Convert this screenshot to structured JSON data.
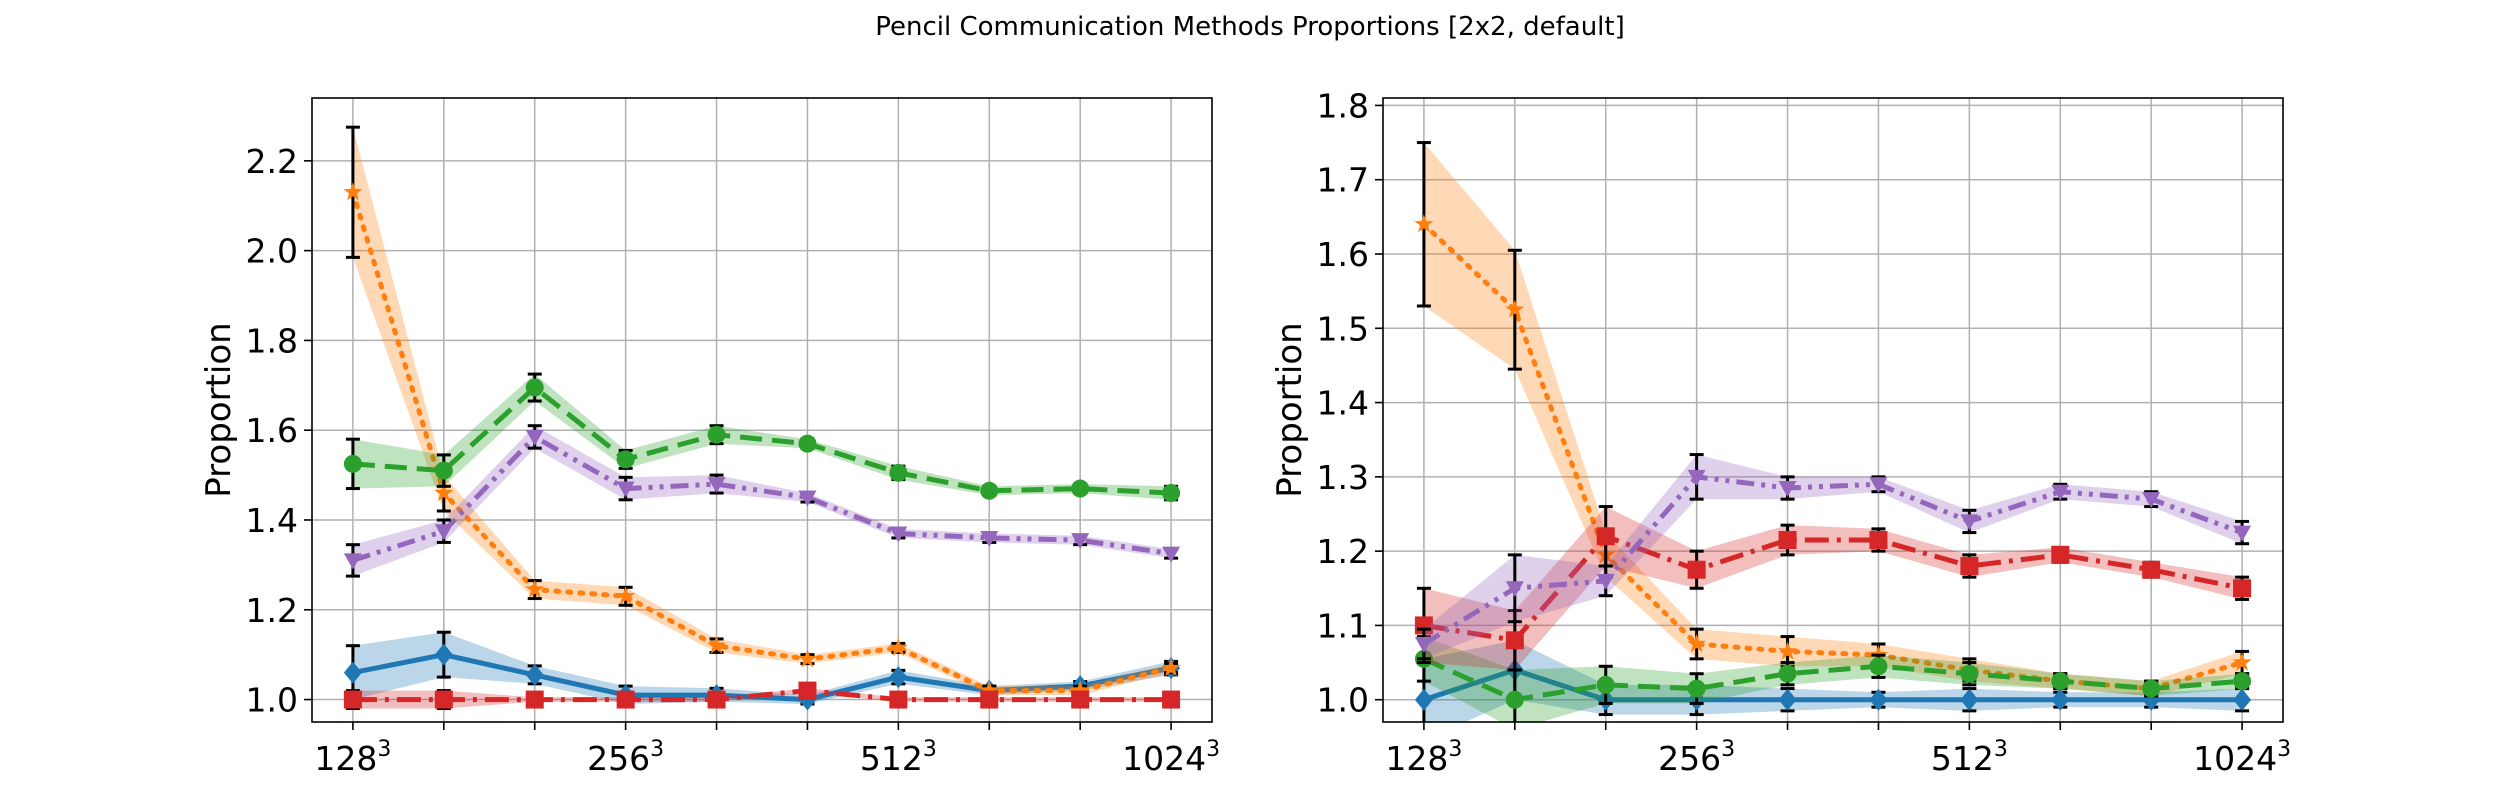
{
  "figure": {
    "title": "Pencil Communication Methods Proportions [2x2, default]"
  },
  "colors": {
    "blue": "#1f77b4",
    "orange": "#ff7f0e",
    "green": "#2ca02c",
    "red": "#d62728",
    "purple": "#9467bd",
    "grid": "#b0b0b0",
    "errorbar": "#000000"
  },
  "chart_data": [
    {
      "type": "line",
      "title": "",
      "xlabel": "",
      "ylabel": "Proportion",
      "grid": true,
      "legend": "none",
      "x": [
        1,
        2,
        3,
        4,
        5,
        6,
        7,
        8,
        9,
        10
      ],
      "x_tick_labels": [
        {
          "x": 1,
          "base": "128",
          "exp": "3"
        },
        {
          "x": 4,
          "base": "256",
          "exp": "3"
        },
        {
          "x": 7,
          "base": "512",
          "exp": "3"
        },
        {
          "x": 10,
          "base": "1024",
          "exp": "3"
        }
      ],
      "ylim": [
        0.95,
        2.34
      ],
      "yticks": [
        1.0,
        1.2,
        1.4,
        1.6,
        1.8,
        2.0,
        2.2
      ],
      "series": [
        {
          "color": "blue",
          "linestyle": "solid",
          "marker": "diamond",
          "values": [
            1.06,
            1.1,
            1.055,
            1.01,
            1.01,
            1.0,
            1.05,
            1.02,
            1.03,
            1.07
          ],
          "errors": [
            0.06,
            0.05,
            0.02,
            0.02,
            0.015,
            0.01,
            0.015,
            0.01,
            0.01,
            0.015
          ]
        },
        {
          "color": "orange",
          "linestyle": "dotted",
          "marker": "star",
          "values": [
            2.13,
            1.46,
            1.245,
            1.23,
            1.12,
            1.09,
            1.115,
            1.02,
            1.02,
            1.07
          ],
          "errors": [
            0.145,
            0.04,
            0.02,
            0.02,
            0.015,
            0.01,
            0.01,
            0.01,
            0.01,
            0.01
          ]
        },
        {
          "color": "green",
          "linestyle": "dashed",
          "marker": "circle",
          "values": [
            1.525,
            1.51,
            1.695,
            1.535,
            1.59,
            1.57,
            1.505,
            1.465,
            1.47,
            1.46
          ],
          "errors": [
            0.055,
            0.035,
            0.03,
            0.02,
            0.02,
            0.01,
            0.015,
            0.01,
            0.01,
            0.015
          ]
        },
        {
          "color": "red",
          "linestyle": "dashdot",
          "marker": "square",
          "values": [
            1.0,
            1.0,
            1.0,
            1.0,
            1.0,
            1.02,
            1.0,
            1.0,
            1.0,
            1.0
          ],
          "errors": [
            0.02,
            0.02,
            0.005,
            0.005,
            0.005,
            0.005,
            0.005,
            0.005,
            0.005,
            0.005
          ]
        },
        {
          "color": "purple",
          "linestyle": "dashdotdot",
          "marker": "triangle-down",
          "values": [
            1.31,
            1.375,
            1.585,
            1.47,
            1.48,
            1.45,
            1.37,
            1.36,
            1.355,
            1.325
          ],
          "errors": [
            0.035,
            0.025,
            0.025,
            0.025,
            0.02,
            0.01,
            0.01,
            0.01,
            0.01,
            0.01
          ]
        }
      ]
    },
    {
      "type": "line",
      "title": "",
      "xlabel": "",
      "ylabel": "Proportion",
      "grid": true,
      "legend": "none",
      "x": [
        1,
        2,
        3,
        4,
        5,
        6,
        7,
        8,
        9,
        10
      ],
      "x_tick_labels": [
        {
          "x": 1,
          "base": "128",
          "exp": "3"
        },
        {
          "x": 4,
          "base": "256",
          "exp": "3"
        },
        {
          "x": 7,
          "base": "512",
          "exp": "3"
        },
        {
          "x": 10,
          "base": "1024",
          "exp": "3"
        }
      ],
      "ylim": [
        0.97,
        1.81
      ],
      "yticks": [
        1.0,
        1.1,
        1.2,
        1.3,
        1.4,
        1.5,
        1.6,
        1.7,
        1.8
      ],
      "series": [
        {
          "color": "blue",
          "linestyle": "solid",
          "marker": "diamond",
          "values": [
            1.0,
            1.04,
            1.0,
            1.0,
            1.0,
            1.0,
            1.0,
            1.0,
            1.0,
            1.0
          ],
          "errors": [
            0.055,
            0.04,
            0.02,
            0.02,
            0.015,
            0.01,
            0.015,
            0.01,
            0.01,
            0.015
          ]
        },
        {
          "color": "orange",
          "linestyle": "dotted",
          "marker": "star",
          "values": [
            1.64,
            1.525,
            1.195,
            1.075,
            1.065,
            1.06,
            1.04,
            1.025,
            1.015,
            1.05
          ],
          "errors": [
            0.11,
            0.08,
            0.03,
            0.02,
            0.02,
            0.015,
            0.015,
            0.01,
            0.01,
            0.015
          ]
        },
        {
          "color": "green",
          "linestyle": "dashed",
          "marker": "circle",
          "values": [
            1.055,
            1.0,
            1.02,
            1.015,
            1.035,
            1.045,
            1.035,
            1.025,
            1.015,
            1.025
          ],
          "errors": [
            0.03,
            0.04,
            0.025,
            0.02,
            0.015,
            0.015,
            0.015,
            0.01,
            0.01,
            0.01
          ]
        },
        {
          "color": "red",
          "linestyle": "dashdot",
          "marker": "square",
          "values": [
            1.1,
            1.08,
            1.22,
            1.175,
            1.215,
            1.215,
            1.18,
            1.195,
            1.175,
            1.15
          ],
          "errors": [
            0.05,
            0.04,
            0.04,
            0.025,
            0.02,
            0.015,
            0.015,
            0.01,
            0.01,
            0.015
          ]
        },
        {
          "color": "purple",
          "linestyle": "dashdotdot",
          "marker": "triangle-down",
          "values": [
            1.075,
            1.15,
            1.16,
            1.3,
            1.285,
            1.29,
            1.24,
            1.28,
            1.27,
            1.225
          ],
          "errors": [
            0.02,
            0.045,
            0.02,
            0.03,
            0.015,
            0.01,
            0.015,
            0.01,
            0.01,
            0.015
          ]
        }
      ]
    }
  ]
}
